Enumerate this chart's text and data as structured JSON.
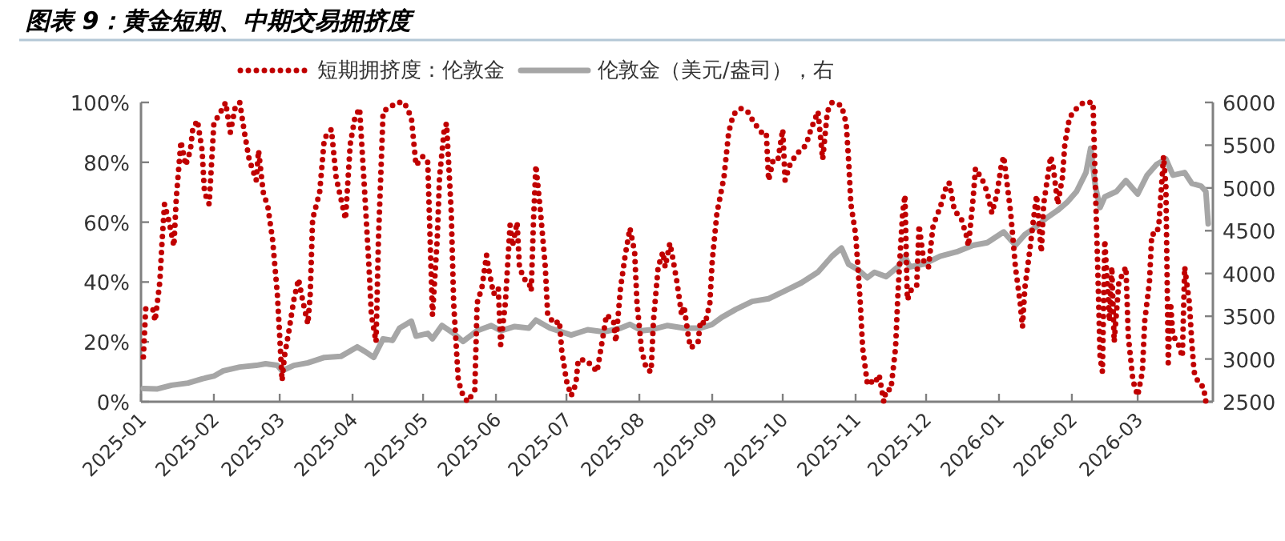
{
  "chart_data": {
    "type": "line",
    "title": "图表 9：黄金短期、中期交易拥挤度",
    "legend": "top",
    "grid": false,
    "marker": "none",
    "xlim": [
      "2025-01-01",
      "2026-04-02"
    ],
    "xticks": [
      "2025-01",
      "2025-02",
      "2025-03",
      "2025-04",
      "2025-05",
      "2025-06",
      "2025-07",
      "2025-08",
      "2025-09",
      "2025-10",
      "2025-11",
      "2025-12",
      "2026-01",
      "2026-02",
      "2026-03"
    ],
    "ylim": [
      0,
      100
    ],
    "yticks": [
      {
        "value": 0,
        "label": "0%"
      },
      {
        "value": 20,
        "label": "20%"
      },
      {
        "value": 40,
        "label": "40%"
      },
      {
        "value": 60,
        "label": "60%"
      },
      {
        "value": 80,
        "label": "80%"
      },
      {
        "value": 100,
        "label": "100%"
      }
    ],
    "y2lim": [
      2500,
      6000
    ],
    "y2ticks": [
      2500,
      3000,
      3500,
      4000,
      4500,
      5000,
      5500,
      6000
    ],
    "series": [
      {
        "name": "短期拥挤度：伦敦金",
        "color": "#c00000",
        "line_style": "dotted",
        "axis": "y",
        "x": [
          "2025-01-02",
          "2025-01-03",
          "2025-01-06",
          "2025-01-07",
          "2025-01-09",
          "2025-01-10",
          "2025-01-11",
          "2025-01-13",
          "2025-01-15",
          "2025-01-16",
          "2025-01-18",
          "2025-01-20",
          "2025-01-22",
          "2025-01-23",
          "2025-01-25",
          "2025-01-27",
          "2025-01-28",
          "2025-01-30",
          "2025-02-01",
          "2025-02-04",
          "2025-02-06",
          "2025-02-08",
          "2025-02-10",
          "2025-02-12",
          "2025-02-14",
          "2025-02-16",
          "2025-02-19",
          "2025-02-20",
          "2025-02-22",
          "2025-02-24",
          "2025-02-26",
          "2025-02-28",
          "2025-03-01",
          "2025-03-02",
          "2025-03-03",
          "2025-03-05",
          "2025-03-07",
          "2025-03-09",
          "2025-03-11",
          "2025-03-13",
          "2025-03-14",
          "2025-03-15",
          "2025-03-18",
          "2025-03-20",
          "2025-03-23",
          "2025-03-25",
          "2025-03-27",
          "2025-03-29",
          "2025-03-31",
          "2025-04-02",
          "2025-04-04",
          "2025-04-06",
          "2025-04-08",
          "2025-04-09",
          "2025-04-11",
          "2025-04-12",
          "2025-04-14",
          "2025-04-16",
          "2025-04-20",
          "2025-04-23",
          "2025-04-26",
          "2025-04-28",
          "2025-05-01",
          "2025-05-03",
          "2025-05-04",
          "2025-05-05",
          "2025-05-07",
          "2025-05-08",
          "2025-05-10",
          "2025-05-11",
          "2025-05-13",
          "2025-05-14",
          "2025-05-16",
          "2025-05-18",
          "2025-05-20",
          "2025-05-23",
          "2025-05-24",
          "2025-05-26",
          "2025-05-28",
          "2025-05-29",
          "2025-05-31",
          "2025-06-02",
          "2025-06-03",
          "2025-06-05",
          "2025-06-07",
          "2025-06-08",
          "2025-06-10",
          "2025-06-11",
          "2025-06-13",
          "2025-06-15",
          "2025-06-16",
          "2025-06-17",
          "2025-06-18",
          "2025-06-20",
          "2025-06-22",
          "2025-06-23",
          "2025-06-26",
          "2025-06-28",
          "2025-06-29",
          "2025-07-01",
          "2025-07-03",
          "2025-07-05",
          "2025-07-06",
          "2025-07-09",
          "2025-07-12",
          "2025-07-14",
          "2025-07-17",
          "2025-07-18",
          "2025-07-21",
          "2025-07-22",
          "2025-07-24",
          "2025-07-26",
          "2025-07-28",
          "2025-07-30",
          "2025-07-31",
          "2025-08-02",
          "2025-08-04",
          "2025-08-06",
          "2025-08-07",
          "2025-08-09",
          "2025-08-11",
          "2025-08-12",
          "2025-08-14",
          "2025-08-15",
          "2025-08-17",
          "2025-08-19",
          "2025-08-20",
          "2025-08-22",
          "2025-08-23",
          "2025-08-26",
          "2025-08-27",
          "2025-08-29",
          "2025-08-31",
          "2025-09-01",
          "2025-09-03",
          "2025-09-06",
          "2025-09-08",
          "2025-09-10",
          "2025-09-13",
          "2025-09-16",
          "2025-09-19",
          "2025-09-22",
          "2025-09-24",
          "2025-09-25",
          "2025-09-27",
          "2025-09-29",
          "2025-10-01",
          "2025-10-02",
          "2025-10-04",
          "2025-10-07",
          "2025-10-09",
          "2025-10-11",
          "2025-10-13",
          "2025-10-16",
          "2025-10-18",
          "2025-10-20",
          "2025-10-22",
          "2025-10-26",
          "2025-10-28",
          "2025-10-29",
          "2025-10-30",
          "2025-11-01",
          "2025-11-02",
          "2025-11-03",
          "2025-11-04",
          "2025-11-06",
          "2025-11-07",
          "2025-11-09",
          "2025-11-11",
          "2025-11-13",
          "2025-11-14",
          "2025-11-16",
          "2025-11-18",
          "2025-11-19",
          "2025-11-20",
          "2025-11-21",
          "2025-11-22",
          "2025-11-23",
          "2025-11-25",
          "2025-11-27",
          "2025-11-28",
          "2025-11-30",
          "2025-12-02",
          "2025-12-04",
          "2025-12-07",
          "2025-12-10",
          "2025-12-11",
          "2025-12-13",
          "2025-12-16",
          "2025-12-18",
          "2025-12-19",
          "2025-12-21",
          "2025-12-22",
          "2025-12-25",
          "2025-12-27",
          "2025-12-29",
          "2025-12-31",
          "2026-01-02",
          "2026-01-03",
          "2026-01-06",
          "2026-01-08",
          "2026-01-10",
          "2026-01-11",
          "2026-01-12",
          "2026-01-14",
          "2026-01-16",
          "2026-01-17",
          "2026-01-19",
          "2026-01-20",
          "2026-01-23",
          "2026-01-24",
          "2026-01-26",
          "2026-01-28",
          "2026-01-29",
          "2026-01-31",
          "2026-02-03",
          "2026-02-06",
          "2026-02-10",
          "2026-02-11",
          "2026-02-12",
          "2026-02-13",
          "2026-02-14",
          "2026-02-15",
          "2026-02-17",
          "2026-02-18",
          "2026-02-19",
          "2026-02-21",
          "2026-02-24",
          "2026-02-25",
          "2026-02-27",
          "2026-03-01",
          "2026-03-03",
          "2026-03-04",
          "2026-03-06",
          "2026-03-07",
          "2026-03-09",
          "2026-03-10",
          "2026-03-12",
          "2026-03-13",
          "2026-03-14",
          "2026-03-15",
          "2026-03-16",
          "2026-03-18",
          "2026-03-20",
          "2026-03-21",
          "2026-03-23",
          "2026-03-24",
          "2026-03-25",
          "2026-03-27",
          "2026-03-29",
          "2026-03-30"
        ],
        "values": [
          15,
          31,
          31,
          27,
          40,
          54,
          66,
          60,
          52,
          68,
          87,
          79,
          84,
          91,
          94,
          84,
          70,
          66,
          93,
          97,
          100,
          90,
          98,
          100,
          90,
          81,
          74,
          84,
          70,
          65,
          54,
          36,
          22,
          7,
          15,
          24,
          34,
          41,
          33,
          26,
          36,
          61,
          70,
          88,
          91,
          75,
          68,
          61,
          86,
          95,
          98,
          72,
          45,
          29,
          20,
          54,
          97,
          98,
          100,
          100,
          95,
          79,
          82,
          80,
          54,
          29,
          54,
          75,
          91,
          93,
          63,
          33,
          7,
          2,
          0,
          4,
          33,
          38,
          49,
          44,
          36,
          38,
          19,
          33,
          59,
          52,
          60,
          45,
          41,
          40,
          37,
          61,
          79,
          63,
          45,
          29,
          26,
          27,
          17,
          7,
          2,
          6,
          14,
          14,
          12,
          10,
          24,
          29,
          27,
          20,
          38,
          49,
          58,
          50,
          33,
          17,
          11,
          10,
          27,
          45,
          50,
          45,
          53,
          49,
          40,
          29,
          32,
          21,
          18,
          20,
          27,
          26,
          33,
          47,
          63,
          75,
          90,
          96,
          98,
          97,
          93,
          90,
          90,
          74,
          81,
          81,
          91,
          74,
          79,
          83,
          84,
          86,
          91,
          97,
          81,
          97,
          100,
          99,
          93,
          81,
          66,
          56,
          45,
          33,
          18,
          6,
          7,
          6,
          9,
          0,
          4,
          4,
          18,
          36,
          50,
          63,
          69,
          34,
          38,
          39,
          59,
          47,
          45,
          59,
          65,
          73,
          73,
          64,
          61,
          56,
          52,
          68,
          78,
          74,
          70,
          63,
          69,
          79,
          82,
          63,
          45,
          33,
          25,
          38,
          50,
          63,
          69,
          50,
          66,
          82,
          79,
          66,
          75,
          86,
          95,
          98,
          100,
          100,
          72,
          45,
          15,
          10,
          54,
          27,
          45,
          20,
          40,
          45,
          22,
          7,
          2,
          10,
          27,
          40,
          56,
          56,
          59,
          82,
          72,
          13,
          33,
          22,
          20,
          15,
          45,
          33,
          20,
          10,
          6,
          5,
          0
        ]
      },
      {
        "name": "伦敦金（美元/盎司），右",
        "color": "#a6a6a6",
        "line_style": "solid",
        "axis": "y2",
        "x": [
          "2025-01-02",
          "2025-01-08",
          "2025-01-14",
          "2025-01-21",
          "2025-01-27",
          "2025-02-01",
          "2025-02-05",
          "2025-02-12",
          "2025-02-19",
          "2025-02-23",
          "2025-02-28",
          "2025-03-02",
          "2025-03-07",
          "2025-03-13",
          "2025-03-20",
          "2025-03-27",
          "2025-04-03",
          "2025-04-06",
          "2025-04-10",
          "2025-04-14",
          "2025-04-18",
          "2025-04-21",
          "2025-04-26",
          "2025-04-28",
          "2025-05-03",
          "2025-05-05",
          "2025-05-09",
          "2025-05-14",
          "2025-05-18",
          "2025-05-24",
          "2025-05-30",
          "2025-06-03",
          "2025-06-09",
          "2025-06-15",
          "2025-06-18",
          "2025-06-24",
          "2025-07-03",
          "2025-07-10",
          "2025-07-17",
          "2025-07-24",
          "2025-07-28",
          "2025-08-02",
          "2025-08-06",
          "2025-08-13",
          "2025-08-20",
          "2025-08-27",
          "2025-09-01",
          "2025-09-05",
          "2025-09-11",
          "2025-09-18",
          "2025-09-25",
          "2025-10-02",
          "2025-10-09",
          "2025-10-16",
          "2025-10-22",
          "2025-10-26",
          "2025-10-29",
          "2025-11-02",
          "2025-11-06",
          "2025-11-09",
          "2025-11-14",
          "2025-11-19",
          "2025-11-22",
          "2025-11-24",
          "2025-11-30",
          "2025-12-07",
          "2025-12-14",
          "2025-12-21",
          "2025-12-27",
          "2026-01-03",
          "2026-01-08",
          "2026-01-12",
          "2026-01-17",
          "2026-01-21",
          "2026-01-26",
          "2026-01-30",
          "2026-02-03",
          "2026-02-07",
          "2026-02-09",
          "2026-02-11",
          "2026-02-13",
          "2026-02-15",
          "2026-02-20",
          "2026-02-24",
          "2026-03-01",
          "2026-03-05",
          "2026-03-09",
          "2026-03-13",
          "2026-03-16",
          "2026-03-21",
          "2026-03-24",
          "2026-03-28",
          "2026-03-30",
          "2026-03-31"
        ],
        "values": [
          2655,
          2650,
          2693,
          2719,
          2768,
          2800,
          2861,
          2906,
          2925,
          2944,
          2925,
          2861,
          2925,
          2955,
          3018,
          3030,
          3142,
          3093,
          3018,
          3236,
          3217,
          3361,
          3442,
          3267,
          3299,
          3236,
          3392,
          3299,
          3205,
          3330,
          3392,
          3330,
          3380,
          3361,
          3455,
          3361,
          3280,
          3342,
          3317,
          3361,
          3405,
          3330,
          3342,
          3392,
          3361,
          3361,
          3405,
          3486,
          3580,
          3673,
          3705,
          3798,
          3892,
          4016,
          4203,
          4297,
          4108,
          4045,
          3950,
          4013,
          3963,
          4077,
          4203,
          4077,
          4108,
          4203,
          4253,
          4329,
          4360,
          4486,
          4329,
          4455,
          4550,
          4644,
          4739,
          4833,
          4959,
          5180,
          5464,
          5022,
          4770,
          4896,
          4959,
          5086,
          4928,
          5149,
          5275,
          5338,
          5149,
          5180,
          5054,
          5022,
          4959,
          4581
        ]
      }
    ]
  }
}
